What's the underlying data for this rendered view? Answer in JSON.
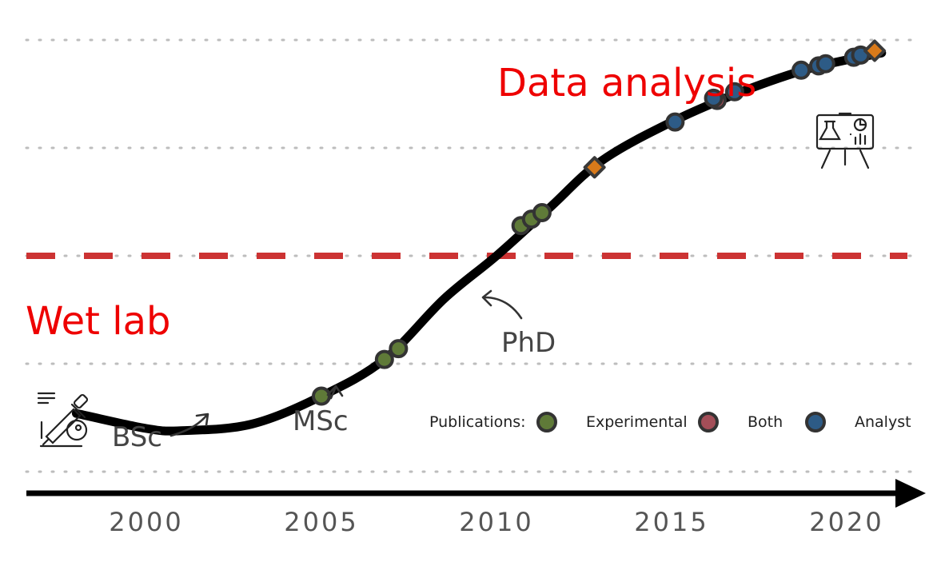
{
  "chart_data": {
    "type": "scatter",
    "title": "",
    "xlabel": "",
    "ylabel": "",
    "x_ticks": [
      2000,
      2005,
      2010,
      2015,
      2020
    ],
    "xlim": [
      1996.5,
      2022
    ],
    "ylim": [
      0,
      100
    ],
    "threshold_y": 50,
    "grid": true,
    "regions": {
      "lower": "Wet lab",
      "upper": "Data analysis"
    },
    "career_curve": [
      {
        "x": 1998.0,
        "y": 13.5
      },
      {
        "x": 2000.0,
        "y": 10.0
      },
      {
        "x": 2001.0,
        "y": 9.5
      },
      {
        "x": 2003.0,
        "y": 11.0
      },
      {
        "x": 2005.0,
        "y": 17.5
      },
      {
        "x": 2006.8,
        "y": 26.0
      },
      {
        "x": 2008.5,
        "y": 40.0
      },
      {
        "x": 2010.0,
        "y": 50.0
      },
      {
        "x": 2011.5,
        "y": 61.0
      },
      {
        "x": 2013.0,
        "y": 72.0
      },
      {
        "x": 2015.0,
        "y": 81.0
      },
      {
        "x": 2017.0,
        "y": 88.0
      },
      {
        "x": 2019.0,
        "y": 93.5
      },
      {
        "x": 2021.0,
        "y": 97.0
      }
    ],
    "milestones": [
      {
        "label": "BSc",
        "x": 2002.0,
        "y": 3.0
      },
      {
        "label": "MSc",
        "x": 2005.4,
        "y": 9.0
      },
      {
        "label": "PhD",
        "x": 2008.0,
        "y": 24.0
      }
    ],
    "legend": {
      "title": "Publications:",
      "position": "bottom-right"
    },
    "series": [
      {
        "name": "Experimental",
        "color": "#5f7a38",
        "marker": "circle",
        "points": [
          {
            "x": 2005.0,
            "y": 17.5
          },
          {
            "x": 2006.8,
            "y": 26.0
          },
          {
            "x": 2007.2,
            "y": 28.5
          },
          {
            "x": 2010.7,
            "y": 57.0
          },
          {
            "x": 2011.0,
            "y": 58.5
          },
          {
            "x": 2011.3,
            "y": 60.0
          }
        ]
      },
      {
        "name": "Both",
        "color": "#a34e58",
        "marker": "circle",
        "points": [
          {
            "x": 2016.3,
            "y": 86.0
          }
        ]
      },
      {
        "name": "Analyst",
        "color": "#2d5b86",
        "marker": "circle",
        "points": [
          {
            "x": 2015.1,
            "y": 81.0
          },
          {
            "x": 2016.2,
            "y": 86.5
          },
          {
            "x": 2016.8,
            "y": 88.0
          },
          {
            "x": 2018.7,
            "y": 93.0
          },
          {
            "x": 2019.2,
            "y": 94.0
          },
          {
            "x": 2019.4,
            "y": 94.5
          },
          {
            "x": 2020.2,
            "y": 96.0
          },
          {
            "x": 2020.4,
            "y": 96.5
          }
        ]
      },
      {
        "color": "#d97a1a",
        "marker": "diamond",
        "points": [
          {
            "x": 2012.8,
            "y": 70.5
          },
          {
            "x": 2020.8,
            "y": 97.5
          }
        ]
      }
    ],
    "icons": [
      "wet-lab-pipette-icon",
      "data-analysis-presentation-icon"
    ]
  }
}
